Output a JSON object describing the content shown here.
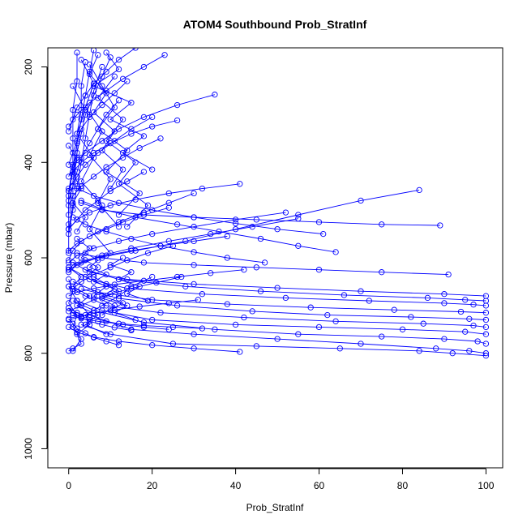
{
  "chart_data": {
    "type": "line",
    "title": "ATOM4 Southbound Prob_StratInf",
    "xlabel": "Prob_StratInf",
    "ylabel": "Pressure (mbar)",
    "xlim": [
      -5,
      104
    ],
    "ylim": [
      1040,
      160
    ],
    "y_reversed": true,
    "x_ticks": [
      0,
      20,
      40,
      60,
      80,
      100
    ],
    "y_ticks": [
      200,
      400,
      600,
      800,
      1000
    ],
    "grid": false,
    "legend": "none",
    "series_color": "#0000ff",
    "marker": "open-circle",
    "series": [
      {
        "x": [
          0,
          1,
          3,
          2,
          5,
          4,
          8,
          12,
          15,
          20
        ],
        "y": [
          795,
          790,
          780,
          760,
          740,
          720,
          700,
          680,
          660,
          640
        ]
      },
      {
        "x": [
          100,
          96,
          88,
          70,
          50,
          30,
          15,
          5,
          2,
          0
        ],
        "y": [
          800,
          795,
          790,
          780,
          770,
          760,
          750,
          720,
          690,
          660
        ]
      },
      {
        "x": [
          100,
          92,
          84,
          65,
          45,
          25,
          10,
          3
        ],
        "y": [
          805,
          800,
          795,
          790,
          785,
          780,
          760,
          740
        ]
      },
      {
        "x": [
          100,
          98,
          90,
          75,
          55,
          35,
          18,
          6,
          1
        ],
        "y": [
          780,
          775,
          770,
          765,
          760,
          750,
          735,
          710,
          690
        ]
      },
      {
        "x": [
          100,
          95,
          80,
          60,
          40,
          20,
          8,
          2
        ],
        "y": [
          760,
          755,
          750,
          745,
          740,
          730,
          710,
          690
        ]
      },
      {
        "x": [
          100,
          97,
          85,
          64,
          42,
          22,
          9,
          4,
          0
        ],
        "y": [
          745,
          742,
          738,
          733,
          725,
          715,
          700,
          680,
          660
        ]
      },
      {
        "x": [
          100,
          96,
          82,
          62,
          44,
          26,
          12,
          3
        ],
        "y": [
          730,
          728,
          724,
          720,
          712,
          700,
          685,
          665
        ]
      },
      {
        "x": [
          100,
          94,
          78,
          58,
          38,
          20,
          7,
          1
        ],
        "y": [
          715,
          713,
          709,
          704,
          697,
          688,
          672,
          650
        ]
      },
      {
        "x": [
          100,
          97,
          90,
          72,
          52,
          32,
          14,
          5,
          0
        ],
        "y": [
          700,
          698,
          695,
          690,
          684,
          676,
          664,
          645,
          620
        ]
      },
      {
        "x": [
          100,
          95,
          86,
          66,
          46,
          28,
          12,
          4
        ],
        "y": [
          690,
          688,
          684,
          678,
          670,
          660,
          645,
          625
        ]
      },
      {
        "x": [
          100,
          90,
          70,
          50,
          30,
          14,
          5,
          1
        ],
        "y": [
          680,
          676,
          670,
          663,
          655,
          645,
          630,
          610
        ]
      },
      {
        "x": [
          91,
          75,
          60,
          45,
          30,
          18,
          8,
          2
        ],
        "y": [
          635,
          630,
          625,
          620,
          615,
          610,
          600,
          590
        ]
      },
      {
        "x": [
          84,
          70,
          55,
          40,
          28,
          16,
          7,
          2,
          0
        ],
        "y": [
          458,
          480,
          510,
          540,
          565,
          585,
          600,
          615,
          630
        ]
      },
      {
        "x": [
          89,
          75,
          60,
          45,
          30,
          18,
          8,
          3
        ],
        "y": [
          532,
          530,
          525,
          520,
          515,
          510,
          500,
          485
        ]
      },
      {
        "x": [
          41,
          32,
          24,
          16,
          10,
          5,
          2,
          0
        ],
        "y": [
          445,
          455,
          465,
          478,
          490,
          505,
          520,
          540
        ]
      },
      {
        "x": [
          64,
          55,
          46,
          36,
          26,
          16,
          8,
          3
        ],
        "y": [
          588,
          575,
          560,
          545,
          530,
          515,
          498,
          480
        ]
      },
      {
        "x": [
          61,
          50,
          40,
          30,
          20,
          12,
          6,
          2
        ],
        "y": [
          550,
          540,
          528,
          515,
          500,
          485,
          470,
          455
        ]
      },
      {
        "x": [
          47,
          38,
          30,
          22,
          15,
          9,
          4,
          1
        ],
        "y": [
          610,
          600,
          588,
          575,
          560,
          545,
          530,
          515
        ]
      },
      {
        "x": [
          35,
          26,
          18,
          12,
          8,
          4,
          1,
          0
        ],
        "y": [
          258,
          280,
          305,
          330,
          355,
          380,
          405,
          430
        ]
      },
      {
        "x": [
          26,
          20,
          15,
          10,
          6,
          3,
          1
        ],
        "y": [
          312,
          325,
          340,
          360,
          380,
          400,
          420
        ]
      },
      {
        "x": [
          23,
          18,
          13,
          9,
          5,
          2,
          0
        ],
        "y": [
          175,
          200,
          225,
          250,
          275,
          300,
          325
        ]
      },
      {
        "x": [
          20,
          15,
          11,
          7,
          4,
          2,
          0
        ],
        "y": [
          305,
          330,
          355,
          380,
          405,
          430,
          455
        ]
      },
      {
        "x": [
          18,
          14,
          10,
          7,
          4,
          2,
          0
        ],
        "y": [
          420,
          440,
          460,
          480,
          500,
          520,
          540
        ]
      },
      {
        "x": [
          24,
          18,
          13,
          9,
          5,
          2,
          0
        ],
        "y": [
          495,
          510,
          525,
          540,
          555,
          570,
          585
        ]
      },
      {
        "x": [
          38,
          30,
          22,
          15,
          9,
          4,
          1,
          0
        ],
        "y": [
          555,
          565,
          575,
          585,
          595,
          605,
          615,
          625
        ]
      },
      {
        "x": [
          52,
          40,
          30,
          20,
          12,
          6,
          2,
          0
        ],
        "y": [
          505,
          520,
          535,
          550,
          565,
          580,
          595,
          610
        ]
      },
      {
        "x": [
          55,
          44,
          34,
          24,
          15,
          8,
          3,
          0
        ],
        "y": [
          518,
          535,
          550,
          565,
          580,
          595,
          610,
          625
        ]
      },
      {
        "x": [
          42,
          34,
          26,
          18,
          11,
          6,
          2,
          0
        ],
        "y": [
          625,
          632,
          640,
          648,
          656,
          664,
          672,
          680
        ]
      },
      {
        "x": [
          30,
          24,
          18,
          12,
          7,
          3,
          1,
          0
        ],
        "y": [
          465,
          485,
          505,
          525,
          545,
          565,
          585,
          605
        ]
      },
      {
        "x": [
          22,
          17,
          13,
          9,
          6,
          3,
          1,
          0
        ],
        "y": [
          350,
          370,
          390,
          410,
          430,
          450,
          470,
          490
        ]
      },
      {
        "x": [
          16,
          12,
          9,
          6,
          4,
          2,
          1,
          0
        ],
        "y": [
          160,
          185,
          210,
          235,
          260,
          285,
          310,
          335
        ]
      },
      {
        "x": [
          14,
          11,
          8,
          5,
          3,
          2,
          1,
          0
        ],
        "y": [
          230,
          255,
          280,
          305,
          330,
          355,
          380,
          405
        ]
      },
      {
        "x": [
          12,
          9,
          7,
          5,
          3,
          2,
          1,
          0
        ],
        "y": [
          270,
          300,
          330,
          360,
          390,
          420,
          450,
          480
        ]
      },
      {
        "x": [
          10,
          8,
          6,
          4,
          3,
          2,
          1,
          0
        ],
        "y": [
          180,
          220,
          260,
          300,
          340,
          380,
          420,
          460
        ]
      },
      {
        "x": [
          8,
          6,
          5,
          4,
          3,
          2,
          1,
          0
        ],
        "y": [
          200,
          250,
          300,
          350,
          400,
          450,
          500,
          550
        ]
      },
      {
        "x": [
          6,
          5,
          4,
          3,
          2,
          1,
          0,
          0
        ],
        "y": [
          165,
          210,
          260,
          310,
          360,
          410,
          460,
          510
        ]
      },
      {
        "x": [
          4,
          3,
          3,
          2,
          2,
          1,
          1,
          0
        ],
        "y": [
          190,
          240,
          290,
          340,
          390,
          440,
          490,
          540
        ]
      },
      {
        "x": [
          2,
          2,
          1,
          1,
          1,
          0,
          0,
          0
        ],
        "y": [
          170,
          230,
          290,
          350,
          410,
          470,
          530,
          590
        ]
      },
      {
        "x": [
          7,
          5,
          9,
          6,
          11,
          8,
          13,
          10
        ],
        "y": [
          175,
          215,
          255,
          295,
          335,
          375,
          415,
          455
        ]
      },
      {
        "x": [
          3,
          6,
          4,
          8,
          5,
          10,
          7,
          12
        ],
        "y": [
          185,
          235,
          285,
          335,
          385,
          435,
          485,
          535
        ]
      },
      {
        "x": [
          5,
          8,
          11,
          7,
          14,
          9,
          17,
          12
        ],
        "y": [
          195,
          240,
          285,
          330,
          375,
          420,
          465,
          510
        ]
      },
      {
        "x": [
          9,
          12,
          6,
          15,
          10,
          18,
          13,
          20
        ],
        "y": [
          170,
          205,
          240,
          275,
          310,
          345,
          380,
          415
        ]
      },
      {
        "x": [
          11,
          7,
          13,
          9,
          16,
          12,
          19,
          14
        ],
        "y": [
          220,
          265,
          310,
          355,
          400,
          445,
          490,
          535
        ]
      },
      {
        "x": [
          1,
          4,
          2,
          6,
          3,
          8,
          5,
          10
        ],
        "y": [
          240,
          290,
          340,
          390,
          440,
          490,
          540,
          590
        ]
      },
      {
        "x": [
          2,
          5,
          3,
          7,
          4,
          9,
          6,
          11,
          8
        ],
        "y": [
          560,
          580,
          600,
          620,
          640,
          660,
          680,
          700,
          720
        ]
      },
      {
        "x": [
          4,
          7,
          5,
          9,
          6,
          11,
          8,
          13,
          10
        ],
        "y": [
          590,
          605,
          620,
          635,
          650,
          665,
          680,
          695,
          710
        ]
      },
      {
        "x": [
          0,
          3,
          1,
          5,
          2,
          7,
          4,
          9
        ],
        "y": [
          620,
          640,
          660,
          680,
          700,
          720,
          740,
          760
        ]
      },
      {
        "x": [
          13,
          10,
          15,
          12,
          17,
          14,
          19
        ],
        "y": [
          600,
          615,
          630,
          645,
          660,
          675,
          690
        ]
      },
      {
        "x": [
          6,
          9,
          12,
          8,
          14,
          11,
          16
        ],
        "y": [
          640,
          655,
          670,
          685,
          700,
          715,
          730
        ]
      },
      {
        "x": [
          25,
          19,
          14,
          10,
          6,
          3,
          1
        ],
        "y": [
          575,
          590,
          605,
          620,
          635,
          650,
          665
        ]
      },
      {
        "x": [
          27,
          21,
          15,
          10,
          6,
          3,
          0
        ],
        "y": [
          640,
          652,
          664,
          676,
          688,
          700,
          712
        ]
      },
      {
        "x": [
          31,
          24,
          17,
          11,
          6,
          3,
          0
        ],
        "y": [
          688,
          695,
          702,
          709,
          716,
          723,
          730
        ]
      },
      {
        "x": [
          32,
          25,
          18,
          12,
          7,
          3,
          1
        ],
        "y": [
          748,
          745,
          742,
          738,
          733,
          727,
          720
        ]
      },
      {
        "x": [
          24,
          18,
          13,
          9,
          5,
          2,
          0
        ],
        "y": [
          750,
          745,
          740,
          733,
          725,
          715,
          705
        ]
      },
      {
        "x": [
          15,
          11,
          8,
          5,
          3,
          1,
          0
        ],
        "y": [
          752,
          746,
          740,
          733,
          725,
          716,
          705
        ]
      },
      {
        "x": [
          12,
          9,
          6,
          4,
          2,
          1,
          0
        ],
        "y": [
          783,
          775,
          767,
          758,
          748,
          738,
          728
        ]
      },
      {
        "x": [
          41,
          30,
          20,
          12,
          6,
          2,
          0
        ],
        "y": [
          797,
          790,
          783,
          775,
          766,
          756,
          745
        ]
      },
      {
        "x": [
          0,
          2,
          1,
          3,
          1,
          4,
          2
        ],
        "y": [
          365,
          395,
          425,
          455,
          485,
          515,
          545
        ]
      },
      {
        "x": [
          0,
          1,
          0,
          2,
          1,
          3,
          1
        ],
        "y": [
          645,
          670,
          695,
          720,
          745,
          770,
          795
        ]
      }
    ]
  }
}
